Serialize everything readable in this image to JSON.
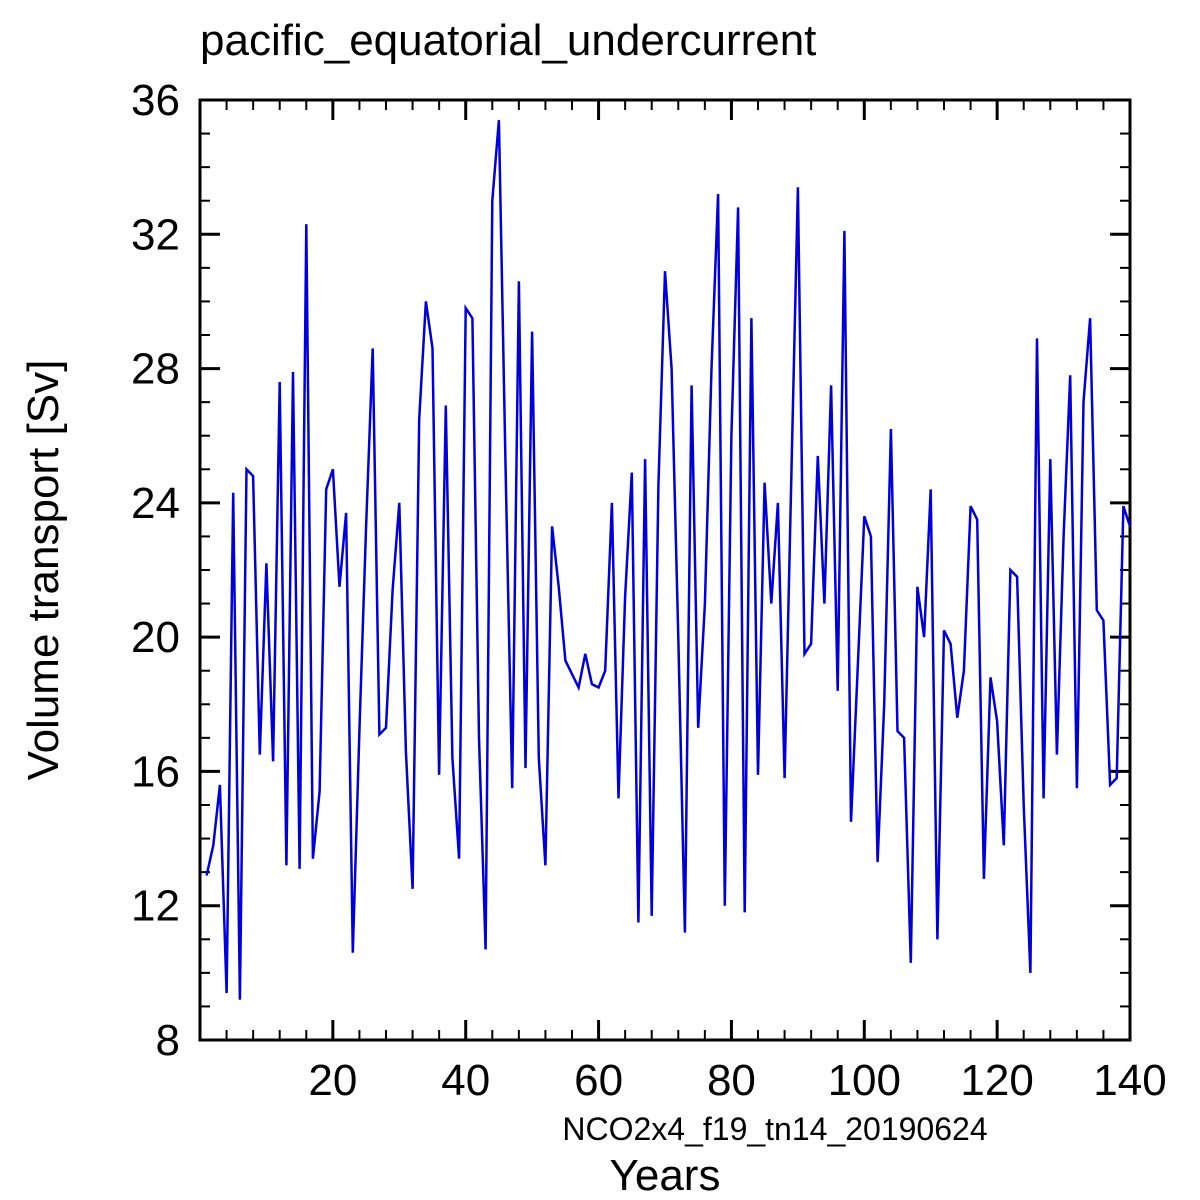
{
  "chart_data": {
    "type": "line",
    "title": "pacific_equatorial_undercurrent",
    "xlabel": "Years",
    "ylabel": "Volume transport [Sv]",
    "annotation": "NCO2x4_f19_tn14_20190624",
    "line_color": "#0000dd",
    "annotation_color": "#0a0aff",
    "axis_color": "#000000",
    "xlim": [
      0,
      140
    ],
    "ylim": [
      8,
      36
    ],
    "x_major_ticks": [
      20,
      40,
      60,
      80,
      100,
      120,
      140
    ],
    "x_minor_step": 4,
    "y_major_ticks": [
      8,
      12,
      16,
      20,
      24,
      28,
      32,
      36
    ],
    "y_minor_step": 1,
    "grid": false,
    "legend": "none",
    "x_start_year": 1,
    "values": [
      12.9,
      13.8,
      15.6,
      9.4,
      24.3,
      9.2,
      25.0,
      24.8,
      16.5,
      22.2,
      16.3,
      27.6,
      13.2,
      27.9,
      13.1,
      32.3,
      13.4,
      15.4,
      24.4,
      25.0,
      21.5,
      23.7,
      10.6,
      17.2,
      23.3,
      28.6,
      17.1,
      17.3,
      21.4,
      24.0,
      16.6,
      12.5,
      26.5,
      30.0,
      28.6,
      15.9,
      26.9,
      16.4,
      13.4,
      29.8,
      29.5,
      17.0,
      10.7,
      33.0,
      35.4,
      25.0,
      15.5,
      30.6,
      16.1,
      29.1,
      16.4,
      13.2,
      23.3,
      21.5,
      19.3,
      18.9,
      18.5,
      19.5,
      18.6,
      18.5,
      19.0,
      24.0,
      15.2,
      21.2,
      24.9,
      11.5,
      25.3,
      11.7,
      24.5,
      30.9,
      28.0,
      20.0,
      11.2,
      27.5,
      17.3,
      21.0,
      28.0,
      33.2,
      12.0,
      26.0,
      32.8,
      11.8,
      29.5,
      15.9,
      24.6,
      21.0,
      24.0,
      15.8,
      24.6,
      33.4,
      19.5,
      19.8,
      25.4,
      21.0,
      27.5,
      18.4,
      32.1,
      14.5,
      19.0,
      23.6,
      23.0,
      13.3,
      18.0,
      26.2,
      17.2,
      17.0,
      10.3,
      21.5,
      20.0,
      24.4,
      11.0,
      20.2,
      19.8,
      17.6,
      19.0,
      23.9,
      23.5,
      12.8,
      18.8,
      17.5,
      13.8,
      22.0,
      21.8,
      15.0,
      10.0,
      28.9,
      15.2,
      25.3,
      16.5,
      23.0,
      27.8,
      15.5,
      27.0,
      29.5,
      20.8,
      20.5,
      15.6,
      15.8,
      23.9,
      23.3
    ]
  }
}
